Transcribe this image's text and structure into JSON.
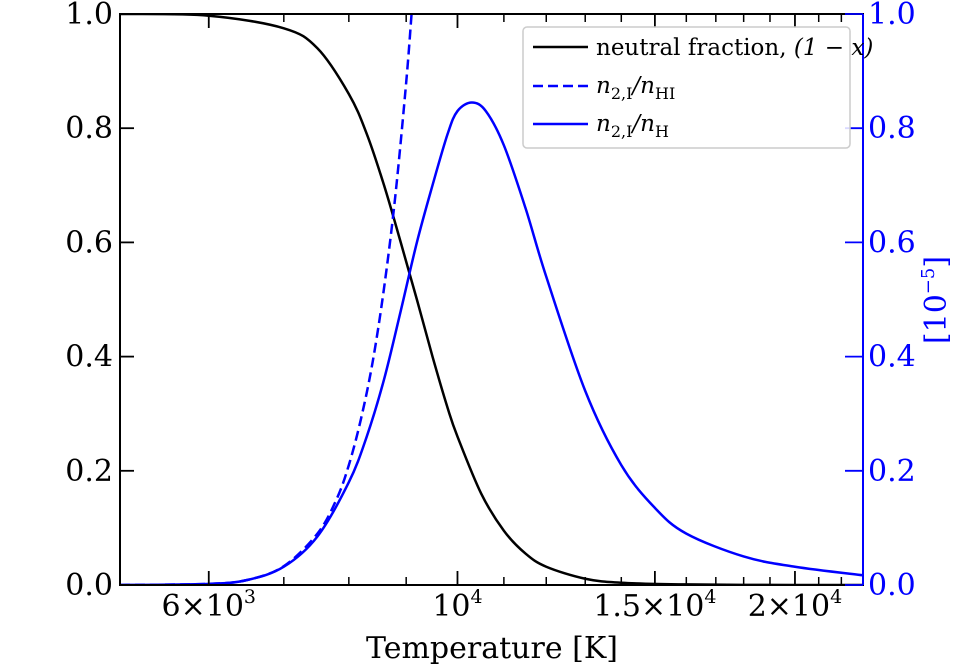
{
  "chart_data": {
    "type": "line",
    "xlabel": "Temperature [K]",
    "xscale": "log",
    "xlim": [
      5000,
      23000
    ],
    "ylim": [
      0,
      1.0
    ],
    "y2lim": [
      0,
      1.0
    ],
    "y2label": "[10",
    "y2label_exp": "−5",
    "y2label_close": "]",
    "x_ticks": [
      {
        "value": 6000,
        "mantissa": "6",
        "times": "×",
        "base": "10",
        "exp": "3"
      },
      {
        "value": 10000,
        "mantissa": "",
        "times": "",
        "base": "10",
        "exp": "4"
      },
      {
        "value": 15000,
        "mantissa": "1.5",
        "times": "×",
        "base": "10",
        "exp": "4"
      },
      {
        "value": 20000,
        "mantissa": "2",
        "times": "×",
        "base": "10",
        "exp": "4"
      }
    ],
    "x_minor_ticks": [
      5000,
      7000,
      8000,
      9000,
      11000,
      12000,
      13000,
      14000,
      16000,
      17000,
      18000,
      19000,
      21000,
      22000
    ],
    "y_ticks": [
      {
        "value": 0.0,
        "label": "0.0"
      },
      {
        "value": 0.2,
        "label": "0.2"
      },
      {
        "value": 0.4,
        "label": "0.4"
      },
      {
        "value": 0.6,
        "label": "0.6"
      },
      {
        "value": 0.8,
        "label": "0.8"
      },
      {
        "value": 1.0,
        "label": "1.0"
      }
    ],
    "y2_ticks": [
      {
        "value": 0.0,
        "label": "0.0"
      },
      {
        "value": 0.2,
        "label": "0.2"
      },
      {
        "value": 0.4,
        "label": "0.4"
      },
      {
        "value": 0.6,
        "label": "0.6"
      },
      {
        "value": 0.8,
        "label": "0.8"
      },
      {
        "value": 1.0,
        "label": "1.0"
      }
    ],
    "series": [
      {
        "name": "neutral fraction, (1 − x)",
        "legend": {
          "main": "neutral fraction, ",
          "math": "(1 − x)"
        },
        "color": "#000000",
        "dash": "solid",
        "axis": "left",
        "x": [
          5000,
          6000,
          7000,
          7500,
          8000,
          8300,
          8600,
          8900,
          9200,
          9500,
          9800,
          10000,
          10500,
          11000,
          11500,
          12000,
          13000,
          14000,
          16000,
          20000,
          23000
        ],
        "y": [
          1.0,
          0.997,
          0.975,
          0.94,
          0.86,
          0.79,
          0.7,
          0.6,
          0.5,
          0.4,
          0.31,
          0.26,
          0.16,
          0.095,
          0.055,
          0.032,
          0.011,
          0.004,
          0.001,
          0.0,
          0.0
        ]
      },
      {
        "name": "n2,I/nHI",
        "legend": {
          "n": "n",
          "sub1": "2,I",
          "slash": "/n",
          "sub2": "HI"
        },
        "color": "#0000ff",
        "dash": "dashed",
        "axis": "right",
        "x": [
          5000,
          6000,
          6500,
          7000,
          7500,
          7800,
          8000,
          8200,
          8400,
          8600,
          8800,
          9000,
          9100
        ],
        "y": [
          0.0,
          0.002,
          0.009,
          0.033,
          0.09,
          0.15,
          0.21,
          0.29,
          0.39,
          0.52,
          0.68,
          0.88,
          1.0
        ]
      },
      {
        "name": "n2,I/nH",
        "legend": {
          "n": "n",
          "sub1": "2,I",
          "slash": "/n",
          "sub2": "H"
        },
        "color": "#0000ff",
        "dash": "solid",
        "axis": "right",
        "x": [
          5000,
          6000,
          6500,
          7000,
          7500,
          8000,
          8300,
          8600,
          8900,
          9200,
          9500,
          9800,
          10000,
          10300,
          10600,
          11000,
          11500,
          12000,
          13000,
          14000,
          15000,
          16000,
          18000,
          20000,
          23000
        ],
        "y": [
          0.0,
          0.002,
          0.009,
          0.032,
          0.085,
          0.18,
          0.26,
          0.36,
          0.48,
          0.6,
          0.7,
          0.79,
          0.83,
          0.845,
          0.83,
          0.77,
          0.66,
          0.54,
          0.34,
          0.21,
          0.135,
          0.09,
          0.05,
          0.032,
          0.017
        ]
      }
    ]
  }
}
